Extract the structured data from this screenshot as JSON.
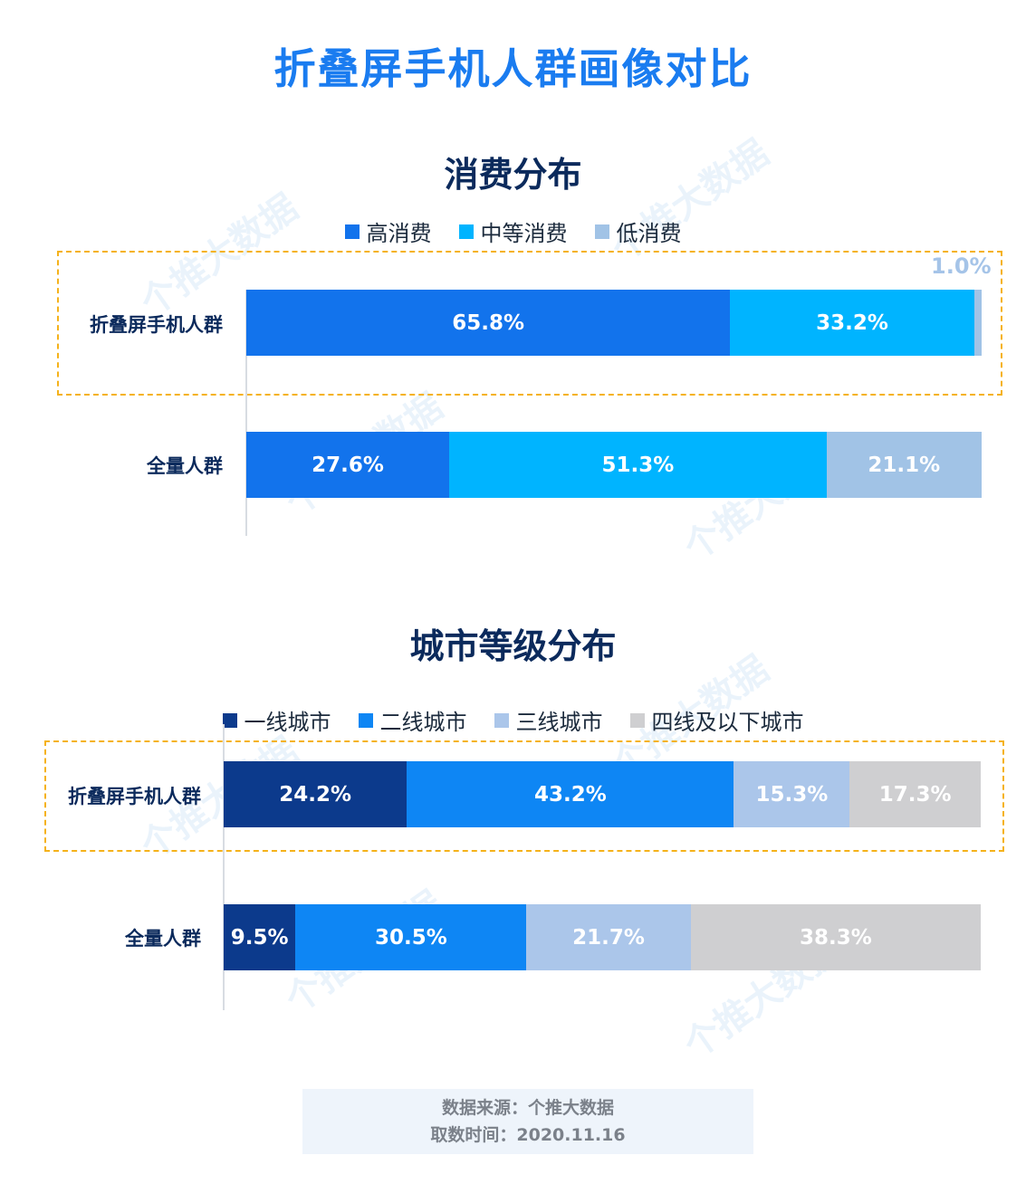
{
  "title": "折叠屏手机人群画像对比",
  "watermark": "个推大数据",
  "chart_data": [
    {
      "type": "bar",
      "stacked": true,
      "orientation": "horizontal",
      "title": "消费分布",
      "categories": [
        "折叠屏手机人群",
        "全量人群"
      ],
      "series": [
        {
          "name": "高消费",
          "color": "#1273ec",
          "values": [
            65.8,
            27.6
          ],
          "labels": [
            "65.8%",
            "27.6%"
          ]
        },
        {
          "name": "中等消费",
          "color": "#00b4ff",
          "values": [
            33.2,
            51.3
          ],
          "labels": [
            "33.2%",
            "51.3%"
          ]
        },
        {
          "name": "低消费",
          "color": "#a1c3e6",
          "values": [
            1.0,
            21.1
          ],
          "labels": [
            "1.0%",
            "21.1%"
          ]
        }
      ],
      "highlight": "折叠屏手机人群"
    },
    {
      "type": "bar",
      "stacked": true,
      "orientation": "horizontal",
      "title": "城市等级分布",
      "categories": [
        "折叠屏手机人群",
        "全量人群"
      ],
      "series": [
        {
          "name": "一线城市",
          "color": "#0c3a8c",
          "values": [
            24.2,
            9.5
          ],
          "labels": [
            "24.2%",
            "9.5%"
          ]
        },
        {
          "name": "二线城市",
          "color": "#0e86f4",
          "values": [
            43.2,
            30.5
          ],
          "labels": [
            "43.2%",
            "30.5%"
          ]
        },
        {
          "name": "三线城市",
          "color": "#abc6ea",
          "values": [
            15.3,
            21.7
          ],
          "labels": [
            "15.3%",
            "21.7%"
          ]
        },
        {
          "name": "四线及以下城市",
          "color": "#cfcfd1",
          "values": [
            17.3,
            38.3
          ],
          "labels": [
            "17.3%",
            "38.3%"
          ]
        }
      ],
      "highlight": "折叠屏手机人群"
    }
  ],
  "source": {
    "line1": "数据来源：个推大数据",
    "line2": "取数时间：2020.11.16"
  }
}
